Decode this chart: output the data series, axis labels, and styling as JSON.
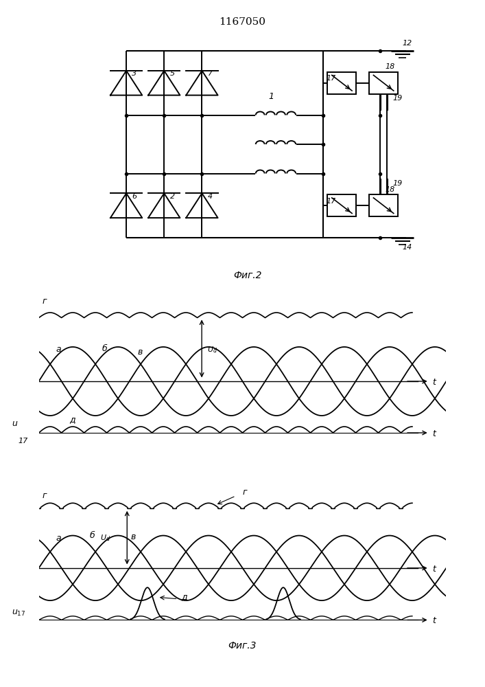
{
  "title": "1167050",
  "fig2_label": "Фиг.2",
  "fig3_label": "Фиг.3",
  "bg_color": "#ffffff",
  "line_color": "#000000",
  "figsize": [
    7.07,
    10.0
  ],
  "dpi": 100
}
